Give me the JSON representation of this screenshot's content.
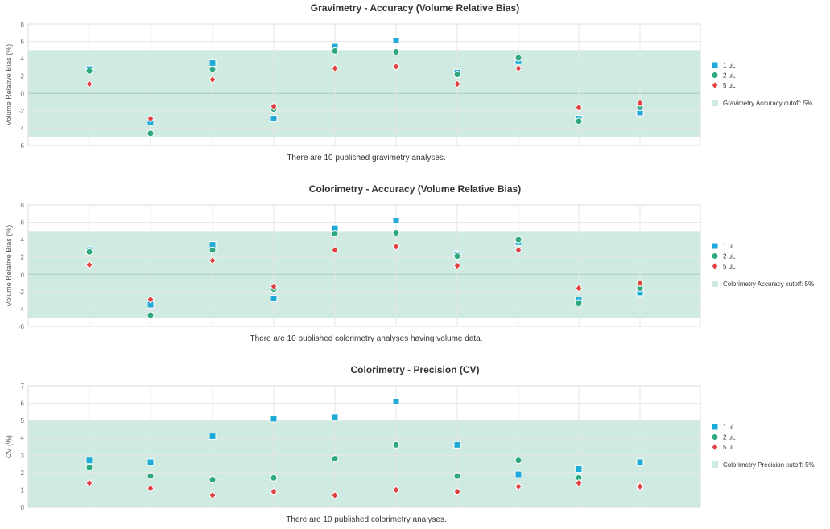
{
  "chart_data": [
    {
      "type": "scatter",
      "title": "Gravimetry - Accuracy (Volume Relative Bias)",
      "xlabel": "",
      "ylabel": "Volume Relative Bias (%)",
      "ylim": [
        -6,
        8
      ],
      "yticks": [
        -6,
        -4,
        -2,
        0,
        2,
        4,
        6,
        8
      ],
      "grid": true,
      "legend_position": "right",
      "cutoff_band": [
        -5,
        5
      ],
      "cutoff_label": "Gravimetry Accuracy cutoff: 5%",
      "caption": "There are 10 published gravimetry analyses.",
      "x": [
        1,
        2,
        3,
        4,
        5,
        6,
        7,
        8,
        9,
        10
      ],
      "series": [
        {
          "name": "1 uL",
          "marker": "square",
          "color": "#1eaad6",
          "values": [
            2.8,
            -3.3,
            3.5,
            -2.9,
            5.4,
            6.1,
            2.4,
            3.8,
            -2.9,
            -2.2
          ]
        },
        {
          "name": "2 uL",
          "marker": "circle",
          "color": "#2ea87e",
          "values": [
            2.6,
            -4.6,
            2.8,
            -1.8,
            4.9,
            4.8,
            2.2,
            4.1,
            -3.2,
            -1.6
          ]
        },
        {
          "name": "5 uL",
          "marker": "diamond",
          "color": "#e04040",
          "values": [
            1.1,
            -2.9,
            1.6,
            -1.5,
            2.9,
            3.1,
            1.1,
            2.9,
            -1.6,
            -1.1
          ]
        }
      ]
    },
    {
      "type": "scatter",
      "title": "Colorimetry - Accuracy (Volume Relative Bias)",
      "xlabel": "",
      "ylabel": "Volume Relative Bias (%)",
      "ylim": [
        -6,
        8
      ],
      "yticks": [
        -6,
        -4,
        -2,
        0,
        2,
        4,
        6,
        8
      ],
      "grid": true,
      "legend_position": "right",
      "cutoff_band": [
        -5,
        5
      ],
      "cutoff_label": "Colorimetry Accuracy cutoff: 5%",
      "caption": "There are 10 published colorimetry analyses having volume data.",
      "x": [
        1,
        2,
        3,
        4,
        5,
        6,
        7,
        8,
        9,
        10
      ],
      "series": [
        {
          "name": "1 uL",
          "marker": "square",
          "color": "#1eaad6",
          "values": [
            2.8,
            -3.5,
            3.4,
            -2.8,
            5.3,
            6.2,
            2.3,
            3.7,
            -3.0,
            -2.1
          ]
        },
        {
          "name": "2 uL",
          "marker": "circle",
          "color": "#2ea87e",
          "values": [
            2.6,
            -4.7,
            2.8,
            -1.7,
            4.7,
            4.8,
            2.1,
            4.0,
            -3.3,
            -1.6
          ]
        },
        {
          "name": "5 uL",
          "marker": "diamond",
          "color": "#e04040",
          "values": [
            1.1,
            -2.9,
            1.6,
            -1.4,
            2.8,
            3.2,
            1.0,
            2.8,
            -1.6,
            -1.0
          ]
        }
      ]
    },
    {
      "type": "scatter",
      "title": "Colorimetry - Precision (CV)",
      "xlabel": "",
      "ylabel": "CV (%)",
      "ylim": [
        0,
        7
      ],
      "yticks": [
        0,
        1,
        2,
        3,
        4,
        5,
        6,
        7
      ],
      "grid": true,
      "legend_position": "right",
      "cutoff_band": [
        0,
        5
      ],
      "cutoff_label": "Colorimetry Precision cutoff: 5%",
      "caption": "There are 10 published colorimetry analyses.",
      "x": [
        1,
        2,
        3,
        4,
        5,
        6,
        7,
        8,
        9,
        10
      ],
      "series": [
        {
          "name": "1 uL",
          "marker": "square",
          "color": "#1eaad6",
          "values": [
            2.7,
            2.6,
            4.1,
            5.1,
            5.2,
            6.1,
            3.6,
            1.9,
            2.2,
            2.6
          ]
        },
        {
          "name": "2 uL",
          "marker": "circle",
          "color": "#2ea87e",
          "values": [
            2.3,
            1.8,
            1.6,
            1.7,
            2.8,
            3.6,
            1.8,
            2.7,
            1.7,
            1.2
          ]
        },
        {
          "name": "5 uL",
          "marker": "diamond",
          "color": "#e04040",
          "values": [
            1.4,
            1.1,
            0.7,
            0.9,
            0.7,
            1.0,
            0.9,
            1.2,
            1.4,
            1.2
          ]
        }
      ]
    }
  ],
  "colors": {
    "band": "#cfeae1",
    "grid": "#e6e6e6",
    "zero_line": "#a9c9bf"
  }
}
